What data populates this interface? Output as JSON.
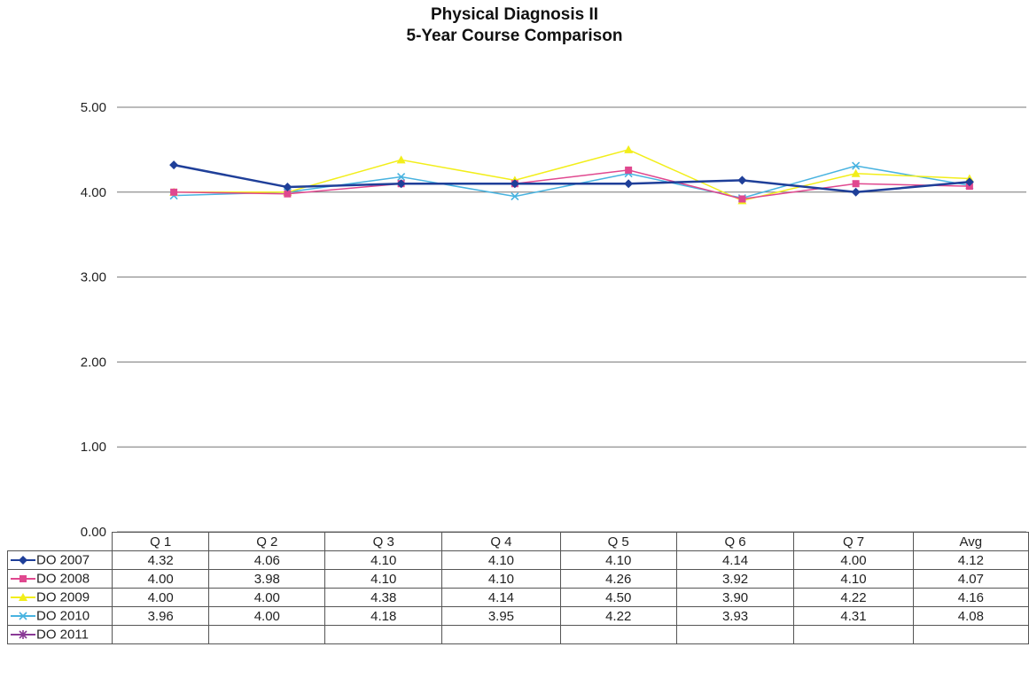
{
  "chart_data": {
    "type": "line",
    "title": "Physical Diagnosis II",
    "subtitle": "5-Year Course Comparison",
    "categories": [
      "Q 1",
      "Q 2",
      "Q 3",
      "Q 4",
      "Q 5",
      "Q 6",
      "Q 7",
      "Avg"
    ],
    "ylim": [
      0,
      5
    ],
    "yticks": [
      "0.00",
      "1.00",
      "2.00",
      "3.00",
      "4.00",
      "5.00"
    ],
    "grid": true,
    "legend": "data-table-bottom",
    "series": [
      {
        "name": "DO 2007",
        "color": "#1f3f99",
        "marker": "diamond",
        "values": [
          4.32,
          4.06,
          4.1,
          4.1,
          4.1,
          4.14,
          4.0,
          4.12
        ],
        "labels": [
          "4.32",
          "4.06",
          "4.10",
          "4.10",
          "4.10",
          "4.14",
          "4.00",
          "4.12"
        ]
      },
      {
        "name": "DO 2008",
        "color": "#e0488f",
        "marker": "square",
        "values": [
          4.0,
          3.98,
          4.1,
          4.1,
          4.26,
          3.92,
          4.1,
          4.07
        ],
        "labels": [
          "4.00",
          "3.98",
          "4.10",
          "4.10",
          "4.26",
          "3.92",
          "4.10",
          "4.07"
        ]
      },
      {
        "name": "DO 2009",
        "color": "#f2ee1a",
        "marker": "triangle",
        "values": [
          4.0,
          4.0,
          4.38,
          4.14,
          4.5,
          3.9,
          4.22,
          4.16
        ],
        "labels": [
          "4.00",
          "4.00",
          "4.38",
          "4.14",
          "4.50",
          "3.90",
          "4.22",
          "4.16"
        ]
      },
      {
        "name": "DO 2010",
        "color": "#48b3e0",
        "marker": "x",
        "values": [
          3.96,
          4.0,
          4.18,
          3.95,
          4.22,
          3.93,
          4.31,
          4.08
        ],
        "labels": [
          "3.96",
          "4.00",
          "4.18",
          "3.95",
          "4.22",
          "3.93",
          "4.31",
          "4.08"
        ]
      },
      {
        "name": "DO 2011",
        "color": "#8a3a96",
        "marker": "star",
        "values": [
          null,
          null,
          null,
          null,
          null,
          null,
          null,
          null
        ],
        "labels": [
          "",
          "",
          "",
          "",
          "",
          "",
          "",
          ""
        ]
      }
    ]
  }
}
